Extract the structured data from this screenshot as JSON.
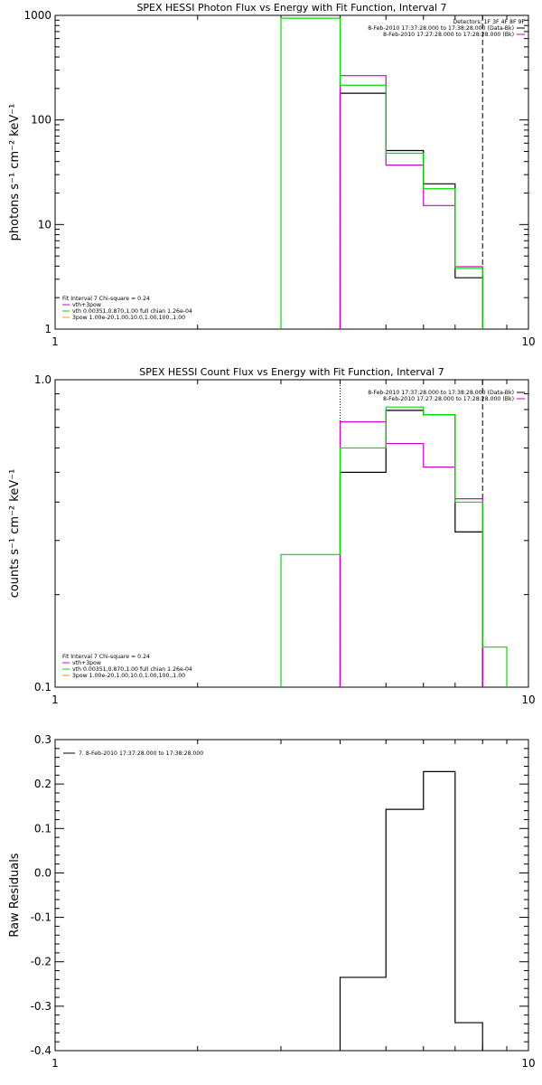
{
  "chart_data": [
    {
      "type": "line",
      "title": "SPEX HESSI Photon Flux vs Energy with Fit Function, Interval 7",
      "ylabel": "photons s⁻¹ cm⁻² keV⁻¹",
      "xlabel": "",
      "xscale": "log",
      "yscale": "log",
      "xlim": [
        1,
        10
      ],
      "ylim": [
        1,
        1000
      ],
      "x_ticks": [
        "1",
        "10"
      ],
      "y_ticks": [
        "1",
        "10",
        "100",
        "1000"
      ],
      "vlines": [
        {
          "x": 4.0,
          "style": "dotted"
        },
        {
          "x": 8.0,
          "style": "dashed"
        }
      ],
      "legend_top": {
        "position": "top-right",
        "detectors": "Detectors: 1F 3F 4F 8F 9F",
        "entries": [
          {
            "label": "8-Feb-2010 17:37:28.000 to 17:38:28.000 (Data-Bk)",
            "color": "#000000"
          },
          {
            "label": "8-Feb-2010 17:27:28.000 to 17:28:28.000 (Bk)",
            "color": "#cc00cc"
          }
        ]
      },
      "legend_bottom": {
        "position": "bottom-left",
        "header": "Fit Interval 7   Chi-square = 0.24",
        "entries": [
          {
            "label": "vth+3pow",
            "color": "#cc00cc"
          },
          {
            "label": "vth 0.00351,0.870,1.00  full chian 1.26e-04",
            "color": "#00dd00"
          },
          {
            "label": "3pow 1.00e-20,1.00,10.0,1.00,100.,1.00",
            "color": "#ff9900"
          }
        ]
      },
      "bin_edges": [
        3,
        4,
        5,
        6,
        7,
        8
      ],
      "series": [
        {
          "name": "Data-Bk",
          "color": "#000000",
          "edges": [
            4,
            5,
            6,
            7,
            8
          ],
          "values": [
            180,
            51,
            24.5,
            3.1
          ]
        },
        {
          "name": "vth+3pow",
          "color": "#cc00cc",
          "edges": [
            4,
            5,
            6,
            7,
            8
          ],
          "values": [
            265,
            37,
            15.2,
            3.95
          ]
        },
        {
          "name": "vth",
          "color": "#00dd00",
          "edges": [
            3,
            4,
            5,
            6,
            7,
            8
          ],
          "values": [
            940,
            215,
            48,
            22,
            3.8
          ]
        }
      ]
    },
    {
      "type": "line",
      "title": "SPEX HESSI Count Flux vs Energy with Fit Function, Interval 7",
      "ylabel": "counts s⁻¹ cm⁻² keV⁻¹",
      "xlabel": "",
      "xscale": "log",
      "yscale": "log",
      "xlim": [
        1,
        10
      ],
      "ylim": [
        0.1,
        1.0
      ],
      "x_ticks": [
        "1",
        "10"
      ],
      "y_ticks": [
        "0.1",
        "1.0"
      ],
      "vlines": [
        {
          "x": 4.0,
          "style": "dotted"
        },
        {
          "x": 8.0,
          "style": "dashed"
        }
      ],
      "legend_top": {
        "position": "top-right",
        "detectors": "",
        "entries": [
          {
            "label": "8-Feb-2010 17:37:28.000 to 17:38:28.000 (Data-Bk)",
            "color": "#000000"
          },
          {
            "label": "8-Feb-2010 17:27:28.000 to 17:28:28.000 (Bk)",
            "color": "#cc00cc"
          }
        ]
      },
      "legend_bottom": {
        "position": "bottom-left",
        "header": "Fit Interval 7   Chi-square = 0.24",
        "entries": [
          {
            "label": "vth+3pow",
            "color": "#cc00cc"
          },
          {
            "label": "vth 0.00351,0.870,1.00  full chian 1.26e-04",
            "color": "#00dd00"
          },
          {
            "label": "3pow 1.00e-20,1.00,10.0,1.00,100.,1.00",
            "color": "#ff9900"
          }
        ]
      },
      "series": [
        {
          "name": "Data-Bk",
          "color": "#000000",
          "edges": [
            4,
            5,
            6,
            7,
            8
          ],
          "values": [
            0.5,
            0.795,
            0.77,
            0.32
          ]
        },
        {
          "name": "vth+3pow",
          "color": "#cc00cc",
          "edges": [
            4,
            5,
            6,
            7,
            8
          ],
          "values": [
            0.73,
            0.62,
            0.52,
            0.41
          ]
        },
        {
          "name": "vth",
          "color": "#00dd00",
          "edges": [
            3,
            4,
            5,
            6,
            7,
            8,
            9
          ],
          "values": [
            0.27,
            0.6,
            0.815,
            0.77,
            0.4,
            0.135
          ]
        }
      ]
    },
    {
      "type": "line",
      "title": "",
      "ylabel": "Raw Residuals",
      "xlabel": "",
      "xscale": "log",
      "yscale": "linear",
      "xlim": [
        1,
        10
      ],
      "ylim": [
        -0.4,
        0.3
      ],
      "x_ticks": [
        "1",
        "10"
      ],
      "y_ticks": [
        "-0.4",
        "-0.3",
        "-0.2",
        "-0.1",
        "0.0",
        "0.1",
        "0.2",
        "0.3"
      ],
      "legend_top": {
        "position": "top-left",
        "entries": [
          {
            "label": "7.  8-Feb-2010 17:37:28.000 to 17:38:28.000",
            "color": "#000000"
          }
        ]
      },
      "series": [
        {
          "name": "7.  8-Feb-2010 17:37:28.000 to 17:38:28.000",
          "color": "#000000",
          "edges": [
            4,
            5,
            6,
            7,
            8
          ],
          "values": [
            -0.235,
            0.143,
            0.228,
            -0.337
          ]
        }
      ]
    }
  ]
}
